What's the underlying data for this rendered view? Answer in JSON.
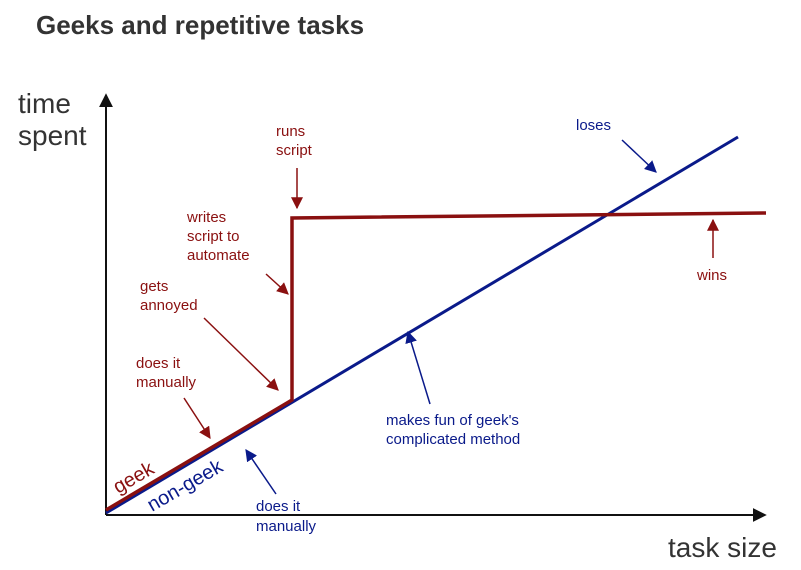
{
  "title": "Geeks and repetitive tasks",
  "axes": {
    "y_label_line1": "time",
    "y_label_line2": "spent",
    "x_label": "task size"
  },
  "lines": {
    "geek_label": "geek",
    "non_geek_label": "non-geek"
  },
  "annotations": {
    "geek_does_it_manually": [
      "does it",
      "manually"
    ],
    "gets_annoyed": [
      "gets",
      "annoyed"
    ],
    "writes_script": [
      "writes",
      "script to",
      "automate"
    ],
    "runs_script": [
      "runs",
      "script"
    ],
    "wins": [
      "wins"
    ],
    "loses": [
      "loses"
    ],
    "makes_fun": [
      "makes fun of geek's",
      "complicated method"
    ],
    "nongeek_does_it_manually": [
      "does it",
      "manually"
    ]
  },
  "colors": {
    "geek": "#8a1010",
    "non_geek": "#0a1a8a",
    "axis": "#111111",
    "title": "#333333"
  }
}
